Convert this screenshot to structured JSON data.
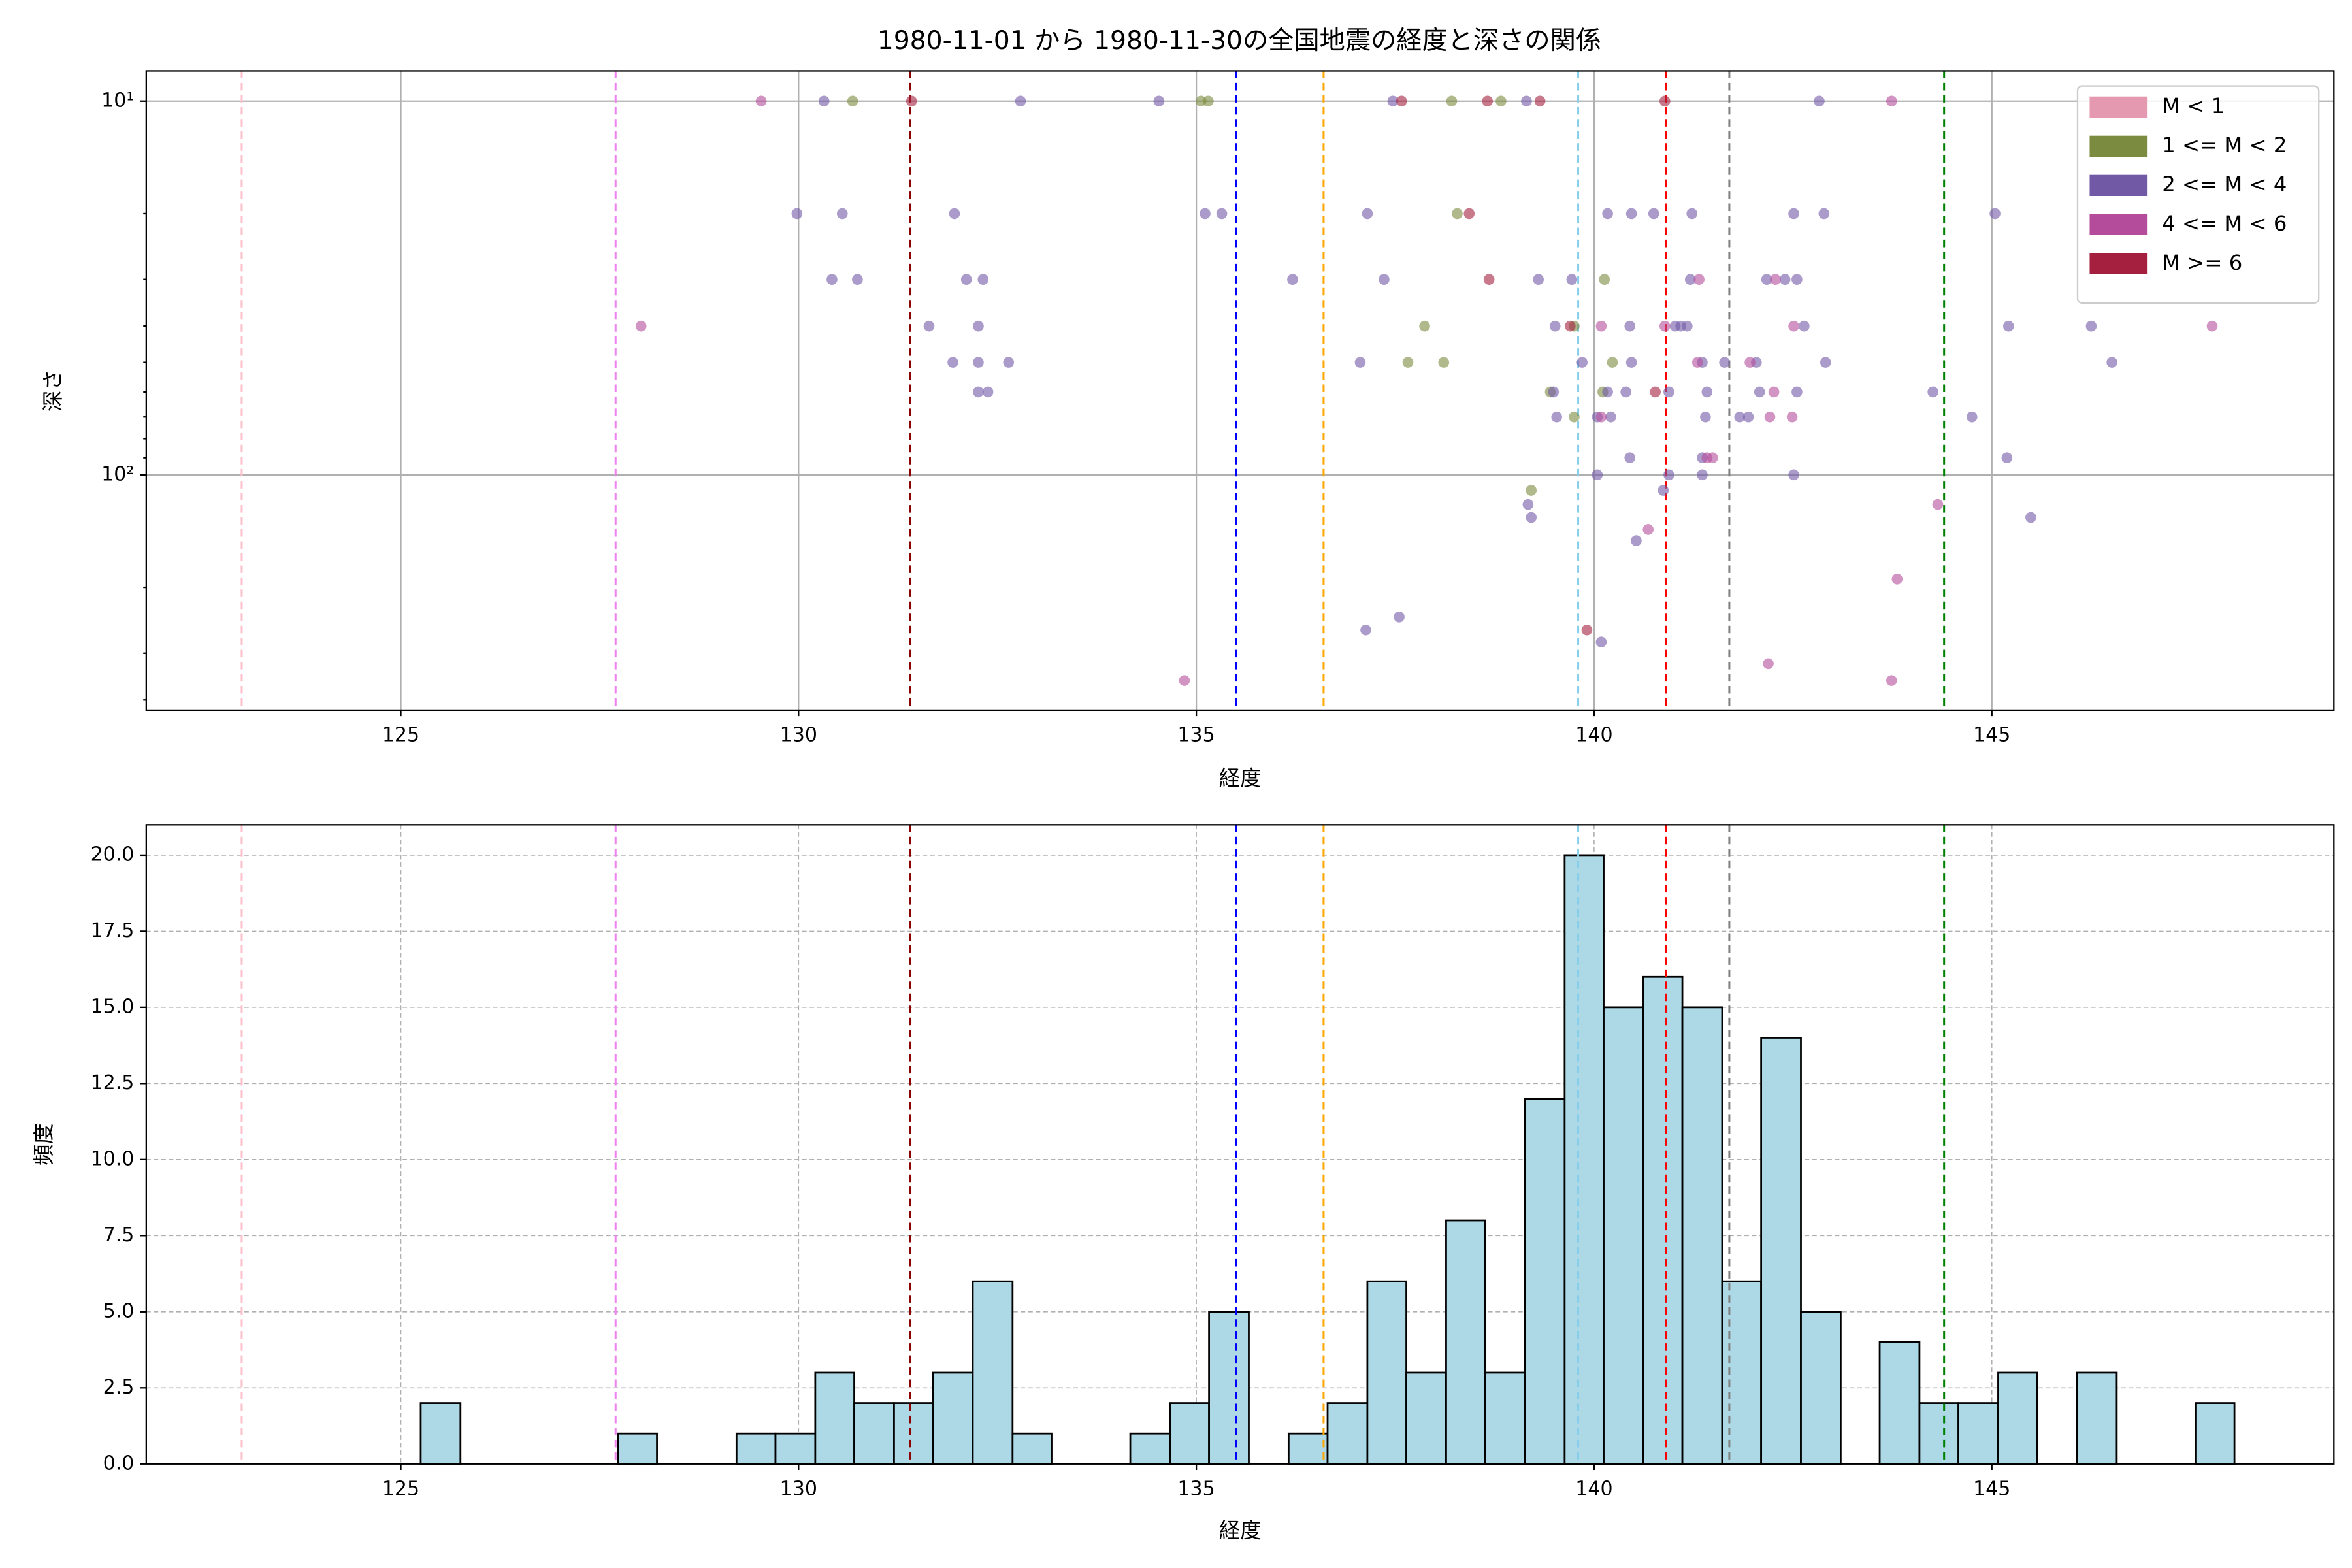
{
  "chart_data": [
    {
      "type": "scatter",
      "title": "1980-11-01 から 1980-11-30の全国地震の経度と深さの関係",
      "x_label": "経度",
      "y_label": "深さ",
      "xlim": [
        121.8,
        149.3
      ],
      "xticks": [
        125,
        130,
        135,
        140,
        145
      ],
      "ylim": [
        426,
        8.3
      ],
      "log_scale": true,
      "yticks": [
        {
          "value": 10,
          "label": "10¹"
        },
        {
          "value": 100,
          "label": "10²"
        }
      ],
      "yminorticks": [
        20,
        30,
        40,
        50,
        60,
        70,
        80,
        90,
        200,
        300,
        400
      ],
      "grid": true,
      "grid_style": "solid",
      "legend": "upper right",
      "vlines": [
        {
          "x": 123.0,
          "color": "pink"
        },
        {
          "x": 127.7,
          "color": "violet"
        },
        {
          "x": 131.4,
          "color": "darkred"
        },
        {
          "x": 135.5,
          "color": "blue"
        },
        {
          "x": 136.6,
          "color": "orange"
        },
        {
          "x": 139.8,
          "color": "skyblue"
        },
        {
          "x": 140.9,
          "color": "red"
        },
        {
          "x": 141.7,
          "color": "gray"
        },
        {
          "x": 144.4,
          "color": "green"
        }
      ],
      "series": [
        {
          "name": "M < 1",
          "color": "#e599b0",
          "x": [],
          "values": []
        },
        {
          "name": "1 <= M < 2",
          "color": "#7b8b3f",
          "x": [
            130.68,
            135.06,
            135.15,
            138.21,
            138.83,
            138.28,
            140.13,
            137.87,
            139.75,
            137.66,
            138.11,
            140.23,
            139.45,
            140.11,
            139.75,
            139.21
          ],
          "values": [
            10,
            10,
            10,
            10,
            10,
            20,
            30,
            40,
            40,
            50,
            50,
            50,
            60,
            60,
            70,
            110
          ]
        },
        {
          "name": "2 <= M < 4",
          "color": "#7159a6",
          "x": [
            130.32,
            132.79,
            134.53,
            137.47,
            139.15,
            142.83,
            129.98,
            130.55,
            131.96,
            135.11,
            135.32,
            137.15,
            140.17,
            140.47,
            140.75,
            141.23,
            142.51,
            142.89,
            145.04,
            130.42,
            130.74,
            132.11,
            132.32,
            136.21,
            137.36,
            139.3,
            139.72,
            141.21,
            142.17,
            142.4,
            142.55,
            131.64,
            132.26,
            139.51,
            140.45,
            141.02,
            141.09,
            141.17,
            142.64,
            145.21,
            146.25,
            131.94,
            132.26,
            132.64,
            137.06,
            139.85,
            140.47,
            141.36,
            141.64,
            142.04,
            142.91,
            146.51,
            132.26,
            132.38,
            139.49,
            140.17,
            140.4,
            140.94,
            141.42,
            142.08,
            142.55,
            144.26,
            139.53,
            140.04,
            140.21,
            141.4,
            141.83,
            141.94,
            144.75,
            140.45,
            141.36,
            145.19,
            140.04,
            140.94,
            141.36,
            142.51,
            140.87,
            139.17,
            139.21,
            145.49,
            140.53,
            137.55,
            137.13,
            140.09
          ],
          "values": [
            10,
            10,
            10,
            10,
            10,
            10,
            20,
            20,
            20,
            20,
            20,
            20,
            20,
            20,
            20,
            20,
            20,
            20,
            20,
            30,
            30,
            30,
            30,
            30,
            30,
            30,
            30,
            30,
            30,
            30,
            30,
            40,
            40,
            40,
            40,
            40,
            40,
            40,
            40,
            40,
            40,
            50,
            50,
            50,
            50,
            50,
            50,
            50,
            50,
            50,
            50,
            50,
            60,
            60,
            60,
            60,
            60,
            60,
            60,
            60,
            60,
            60,
            70,
            70,
            70,
            70,
            70,
            70,
            70,
            90,
            90,
            90,
            100,
            100,
            100,
            100,
            110,
            120,
            130,
            130,
            150,
            240,
            260,
            280
          ]
        },
        {
          "name": "4 <= M < 6",
          "color": "#b44c9b",
          "x": [
            129.53,
            143.74,
            142.28,
            141.32,
            128.02,
            140.09,
            140.89,
            142.51,
            147.77,
            141.3,
            141.96,
            142.26,
            140.09,
            142.21,
            142.49,
            141.42,
            141.49,
            144.32,
            140.68,
            143.81,
            142.19,
            134.85,
            143.74
          ],
          "values": [
            10,
            10,
            30,
            30,
            40,
            40,
            40,
            40,
            40,
            50,
            50,
            60,
            70,
            70,
            70,
            90,
            90,
            120,
            140,
            190,
            320,
            355,
            355
          ]
        },
        {
          "name": "M >= 6",
          "color": "#a51f3f",
          "x": [
            131.42,
            137.58,
            138.66,
            139.32,
            140.89,
            138.43,
            138.68,
            139.7,
            140.77,
            139.91
          ],
          "values": [
            10,
            10,
            10,
            10,
            10,
            20,
            30,
            40,
            60,
            260
          ]
        }
      ]
    },
    {
      "type": "histogram",
      "x_label": "経度",
      "y_label": "頻度",
      "xlim": [
        121.8,
        149.3
      ],
      "xticks": [
        125,
        130,
        135,
        140,
        145
      ],
      "ylim": [
        0,
        21
      ],
      "yticks": [
        {
          "value": 0,
          "label": "0.0"
        },
        2.5,
        {
          "value": 5,
          "label": "5.0"
        },
        7.5,
        {
          "value": 10,
          "label": "10.0"
        },
        12.5,
        {
          "value": 15,
          "label": "15.0"
        },
        17.5,
        {
          "value": 20,
          "label": "20.0"
        }
      ],
      "grid": true,
      "grid_style": "dashed",
      "color": "#add8e6",
      "vlines": [
        {
          "x": 123.0,
          "color": "pink"
        },
        {
          "x": 127.7,
          "color": "violet"
        },
        {
          "x": 131.4,
          "color": "darkred"
        },
        {
          "x": 135.5,
          "color": "blue"
        },
        {
          "x": 136.6,
          "color": "orange"
        },
        {
          "x": 139.8,
          "color": "skyblue"
        },
        {
          "x": 140.9,
          "color": "red"
        },
        {
          "x": 141.7,
          "color": "gray"
        },
        {
          "x": 144.4,
          "color": "green"
        }
      ],
      "bins": [
        125.25,
        125.75,
        126.24,
        126.74,
        127.23,
        127.73,
        128.22,
        128.72,
        129.22,
        129.71,
        130.21,
        130.7,
        131.2,
        131.69,
        132.19,
        132.69,
        133.18,
        133.68,
        134.17,
        134.67,
        135.16,
        135.66,
        136.16,
        136.65,
        137.15,
        137.64,
        138.14,
        138.63,
        139.13,
        139.63,
        140.12,
        140.62,
        141.11,
        141.61,
        142.1,
        142.6,
        143.1,
        143.59,
        144.09,
        144.58,
        145.08,
        145.57,
        146.07,
        146.57,
        147.06,
        147.56,
        148.05
      ],
      "values": [
        2,
        0,
        0,
        0,
        0,
        1,
        0,
        0,
        1,
        1,
        3,
        2,
        2,
        3,
        6,
        1,
        0,
        0,
        1,
        2,
        5,
        0,
        1,
        2,
        6,
        3,
        8,
        3,
        12,
        20,
        15,
        16,
        15,
        6,
        14,
        5,
        0,
        4,
        2,
        2,
        3,
        0,
        3,
        0,
        0,
        2
      ]
    }
  ]
}
